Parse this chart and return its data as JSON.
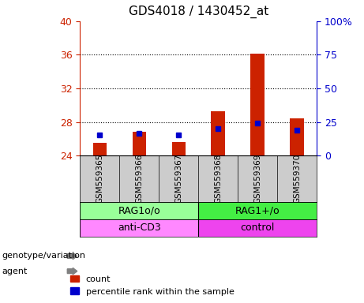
{
  "title": "GDS4018 / 1430452_at",
  "samples": [
    "GSM559365",
    "GSM559366",
    "GSM559367",
    "GSM559368",
    "GSM559369",
    "GSM559370"
  ],
  "count_values": [
    25.5,
    26.8,
    25.6,
    29.3,
    36.1,
    28.4
  ],
  "percentile_values": [
    26.5,
    26.7,
    26.5,
    27.2,
    27.9,
    27.0
  ],
  "ylim_left": [
    24,
    40
  ],
  "ylim_right": [
    0,
    100
  ],
  "yticks_left": [
    24,
    28,
    32,
    36,
    40
  ],
  "yticks_right": [
    0,
    25,
    50,
    75,
    100
  ],
  "ytick_labels_right": [
    "0",
    "25",
    "50",
    "75",
    "100%"
  ],
  "grid_lines": [
    28,
    32,
    36
  ],
  "bar_color": "#cc2200",
  "marker_color": "#0000cc",
  "bar_baseline": 24,
  "genotype_groups": [
    {
      "label": "RAG1o/o",
      "start": 0,
      "end": 3,
      "color": "#99ff99"
    },
    {
      "label": "RAG1+/o",
      "start": 3,
      "end": 6,
      "color": "#44ee44"
    }
  ],
  "agent_groups": [
    {
      "label": "anti-CD3",
      "start": 0,
      "end": 3,
      "color": "#ff88ff"
    },
    {
      "label": "control",
      "start": 3,
      "end": 6,
      "color": "#ee44ee"
    }
  ],
  "xlabel_area_bg": "#cccccc",
  "genotype_label": "genotype/variation",
  "agent_label": "agent",
  "legend_count_label": "count",
  "legend_pct_label": "percentile rank within the sample",
  "left_axis_color": "#cc2200",
  "right_axis_color": "#0000cc"
}
